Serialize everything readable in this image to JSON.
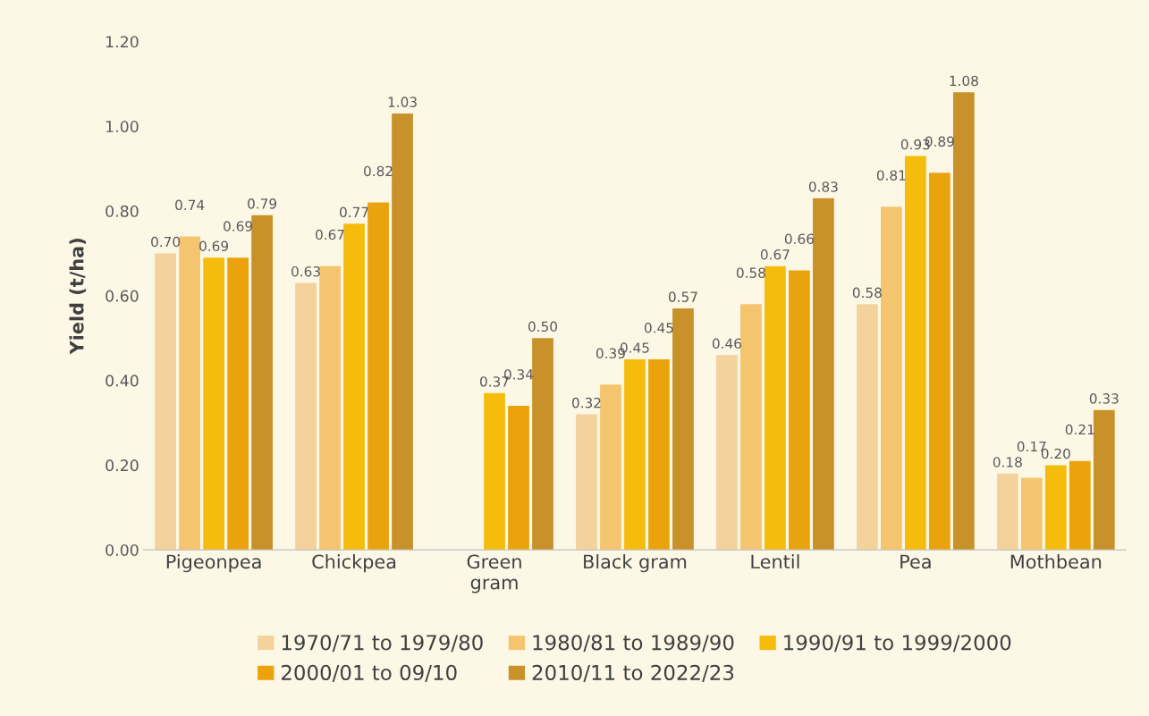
{
  "chart_data": {
    "type": "bar",
    "ylabel": "Yield (t/ha)",
    "categories": [
      "Pigeonpea",
      "Chickpea",
      "Green\ngram",
      "Black gram",
      "Lentil",
      "Pea",
      "Mothbean"
    ],
    "series": [
      {
        "name": "1970/71 to 1979/80",
        "color": "#f3d29c",
        "values": [
          0.7,
          0.63,
          null,
          0.32,
          0.46,
          0.58,
          0.18
        ],
        "value_labels": [
          "0.70",
          "0.63",
          null,
          "0.32",
          "0.46",
          "0.58",
          "0.18"
        ]
      },
      {
        "name": "1980/81 to 1989/90",
        "color": "#f5c46e",
        "values": [
          0.74,
          0.67,
          null,
          0.39,
          0.58,
          0.81,
          0.17
        ],
        "value_labels": [
          "0.74",
          "0.67",
          null,
          "0.39",
          "0.58",
          "0.81",
          "0.17"
        ]
      },
      {
        "name": "1990/91 to 1999/2000",
        "color": "#f5bc0c",
        "values": [
          0.69,
          0.77,
          0.37,
          0.45,
          0.67,
          0.93,
          0.2
        ],
        "value_labels": [
          "0.69",
          "0.77",
          "0.37",
          "0.45",
          "0.67",
          "0.93",
          "0.20"
        ]
      },
      {
        "name": "2000/01 to 09/10",
        "color": "#eaa30c",
        "values": [
          0.69,
          0.82,
          0.34,
          0.45,
          0.66,
          0.89,
          0.21
        ],
        "value_labels": [
          "0.69",
          "0.82",
          "0.34",
          "0.45",
          "0.66",
          "0.89",
          "0.21"
        ]
      },
      {
        "name": "2010/11 to 2022/23",
        "color": "#c8912a",
        "values": [
          0.79,
          1.03,
          0.5,
          0.57,
          0.83,
          1.08,
          0.33
        ],
        "value_labels": [
          "0.79",
          "1.03",
          "0.50",
          "0.57",
          "0.83",
          "1.08",
          "0.33"
        ]
      }
    ],
    "ylim": [
      0,
      1.2
    ],
    "yticks": [
      {
        "value": 0,
        "label": "0.00"
      },
      {
        "value": 0.2,
        "label": "0.20"
      },
      {
        "value": 0.4,
        "label": "0.40"
      },
      {
        "value": 0.6,
        "label": "0.60"
      },
      {
        "value": 0.8,
        "label": "0.80"
      },
      {
        "value": 1.0,
        "label": "1.00"
      },
      {
        "value": 1.2,
        "label": "1.20"
      }
    ],
    "legend": "bottom",
    "grid": false
  }
}
